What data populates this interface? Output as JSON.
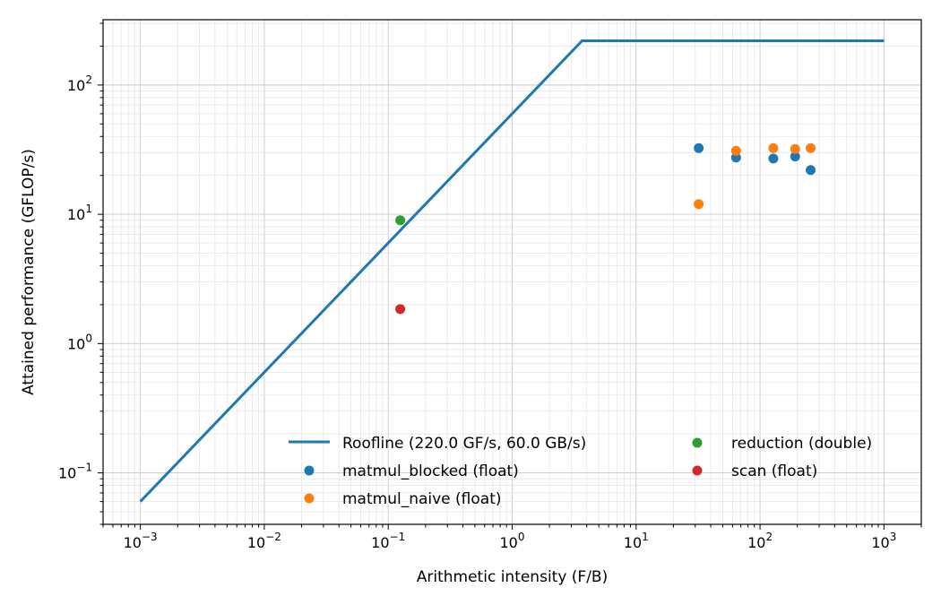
{
  "chart_data": {
    "type": "scatter",
    "title": "",
    "xlabel": "Arithmetic intensity (F/B)",
    "ylabel": "Attained performance (GFLOP/s)",
    "x_scale": "log",
    "y_scale": "log",
    "xlim": [
      0.0005,
      2000
    ],
    "ylim": [
      0.04,
      320
    ],
    "grid": true,
    "legend_position": "lower-right",
    "x_ticks": [
      {
        "value": 0.001,
        "base": "10",
        "exp": "−3"
      },
      {
        "value": 0.01,
        "base": "10",
        "exp": "−2"
      },
      {
        "value": 0.1,
        "base": "10",
        "exp": "−1"
      },
      {
        "value": 1,
        "base": "10",
        "exp": "0"
      },
      {
        "value": 10,
        "base": "10",
        "exp": "1"
      },
      {
        "value": 100,
        "base": "10",
        "exp": "2"
      },
      {
        "value": 1000,
        "base": "10",
        "exp": "3"
      }
    ],
    "y_ticks": [
      {
        "value": 0.1,
        "base": "10",
        "exp": "−1"
      },
      {
        "value": 1,
        "base": "10",
        "exp": "0"
      },
      {
        "value": 10,
        "base": "10",
        "exp": "1"
      },
      {
        "value": 100,
        "base": "10",
        "exp": "2"
      }
    ],
    "roofline": {
      "name": "Roofline (220.0 GF/s, 60.0 GB/s)",
      "color": "#1f77b4",
      "x": [
        0.001,
        3.667,
        1000
      ],
      "y": [
        0.06,
        220,
        220
      ]
    },
    "series": [
      {
        "name": "matmul_blocked (float)",
        "color": "#1f77b4",
        "points": [
          [
            32,
            32.5
          ],
          [
            64,
            27.5
          ],
          [
            128,
            27
          ],
          [
            192,
            28
          ],
          [
            256,
            22
          ]
        ]
      },
      {
        "name": "matmul_naive (float)",
        "color": "#ff7f0e",
        "points": [
          [
            32,
            12
          ],
          [
            64,
            31
          ],
          [
            128,
            32.5
          ],
          [
            192,
            32
          ],
          [
            256,
            32.5
          ]
        ]
      },
      {
        "name": "reduction (double)",
        "color": "#2ca02c",
        "points": [
          [
            0.125,
            9
          ]
        ]
      },
      {
        "name": "scan (float)",
        "color": "#d62728",
        "points": [
          [
            0.125,
            1.85
          ]
        ]
      }
    ]
  }
}
